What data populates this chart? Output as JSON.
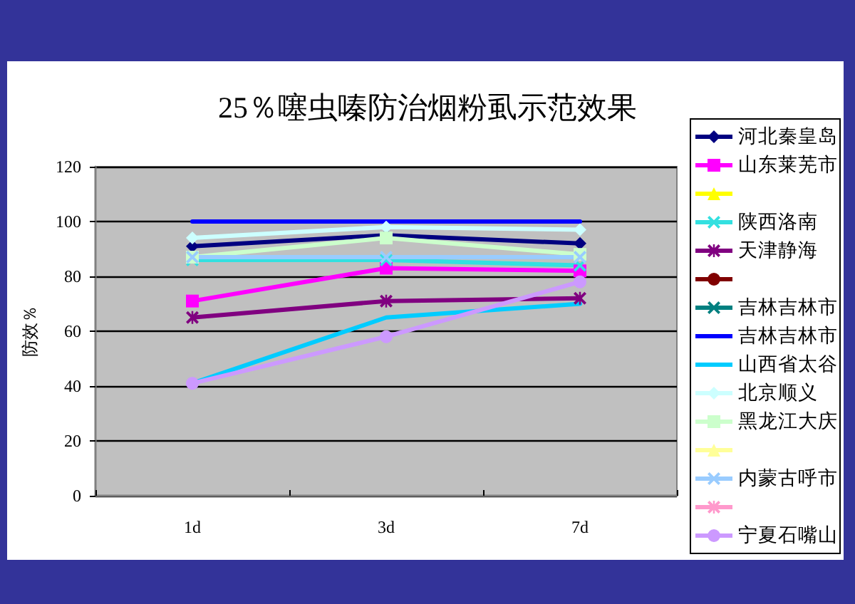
{
  "chart_data": {
    "type": "line",
    "title": "25％噻虫嗪防治烟粉虱示范效果",
    "ylabel": "防效％",
    "categories": [
      "1d",
      "3d",
      "7d"
    ],
    "ylim": [
      0,
      120
    ],
    "yticks": [
      0,
      20,
      40,
      60,
      80,
      100,
      120
    ],
    "grid": "y",
    "legend": "right",
    "series": [
      {
        "name": "河北秦皇岛",
        "color": "#000080",
        "marker": "diamond",
        "values": [
          91,
          95,
          92
        ]
      },
      {
        "name": "山东莱芜市",
        "color": "#ff00ff",
        "marker": "square",
        "values": [
          71,
          83,
          82
        ]
      },
      {
        "color": "#ffff00",
        "marker": "triangle",
        "values": [
          null,
          null,
          null
        ]
      },
      {
        "name": "陕西洛南",
        "color": "#33e0e0",
        "marker": "cross",
        "values": [
          86,
          86,
          84
        ]
      },
      {
        "name": "天津静海",
        "color": "#800080",
        "marker": "star",
        "values": [
          65,
          71,
          72
        ]
      },
      {
        "color": "#800000",
        "marker": "circle",
        "values": [
          null,
          null,
          null
        ]
      },
      {
        "name": "吉林吉林市",
        "color": "#008080",
        "marker": "cross",
        "values": [
          null,
          null,
          null
        ]
      },
      {
        "name": "吉林吉林市",
        "color": "#0000ff",
        "marker": "none",
        "values": [
          100,
          100,
          100
        ]
      },
      {
        "name": "山西省太谷",
        "color": "#00ccff",
        "marker": "none",
        "values": [
          41,
          65,
          70
        ]
      },
      {
        "name": "北京顺义",
        "color": "#ccffff",
        "marker": "diamond",
        "values": [
          94,
          98,
          97
        ]
      },
      {
        "name": "黑龙江大庆",
        "color": "#ccffcc",
        "marker": "square",
        "values": [
          87,
          94,
          88
        ]
      },
      {
        "color": "#ffff99",
        "marker": "triangle",
        "values": [
          null,
          null,
          null
        ]
      },
      {
        "name": "内蒙古呼市",
        "color": "#99ccff",
        "marker": "cross",
        "values": [
          87,
          87,
          87
        ]
      },
      {
        "color": "#ff99cc",
        "marker": "star",
        "values": [
          null,
          null,
          null
        ]
      },
      {
        "name": "宁夏石嘴山",
        "color": "#cc99ff",
        "marker": "circle",
        "values": [
          41,
          58,
          78
        ]
      }
    ]
  }
}
